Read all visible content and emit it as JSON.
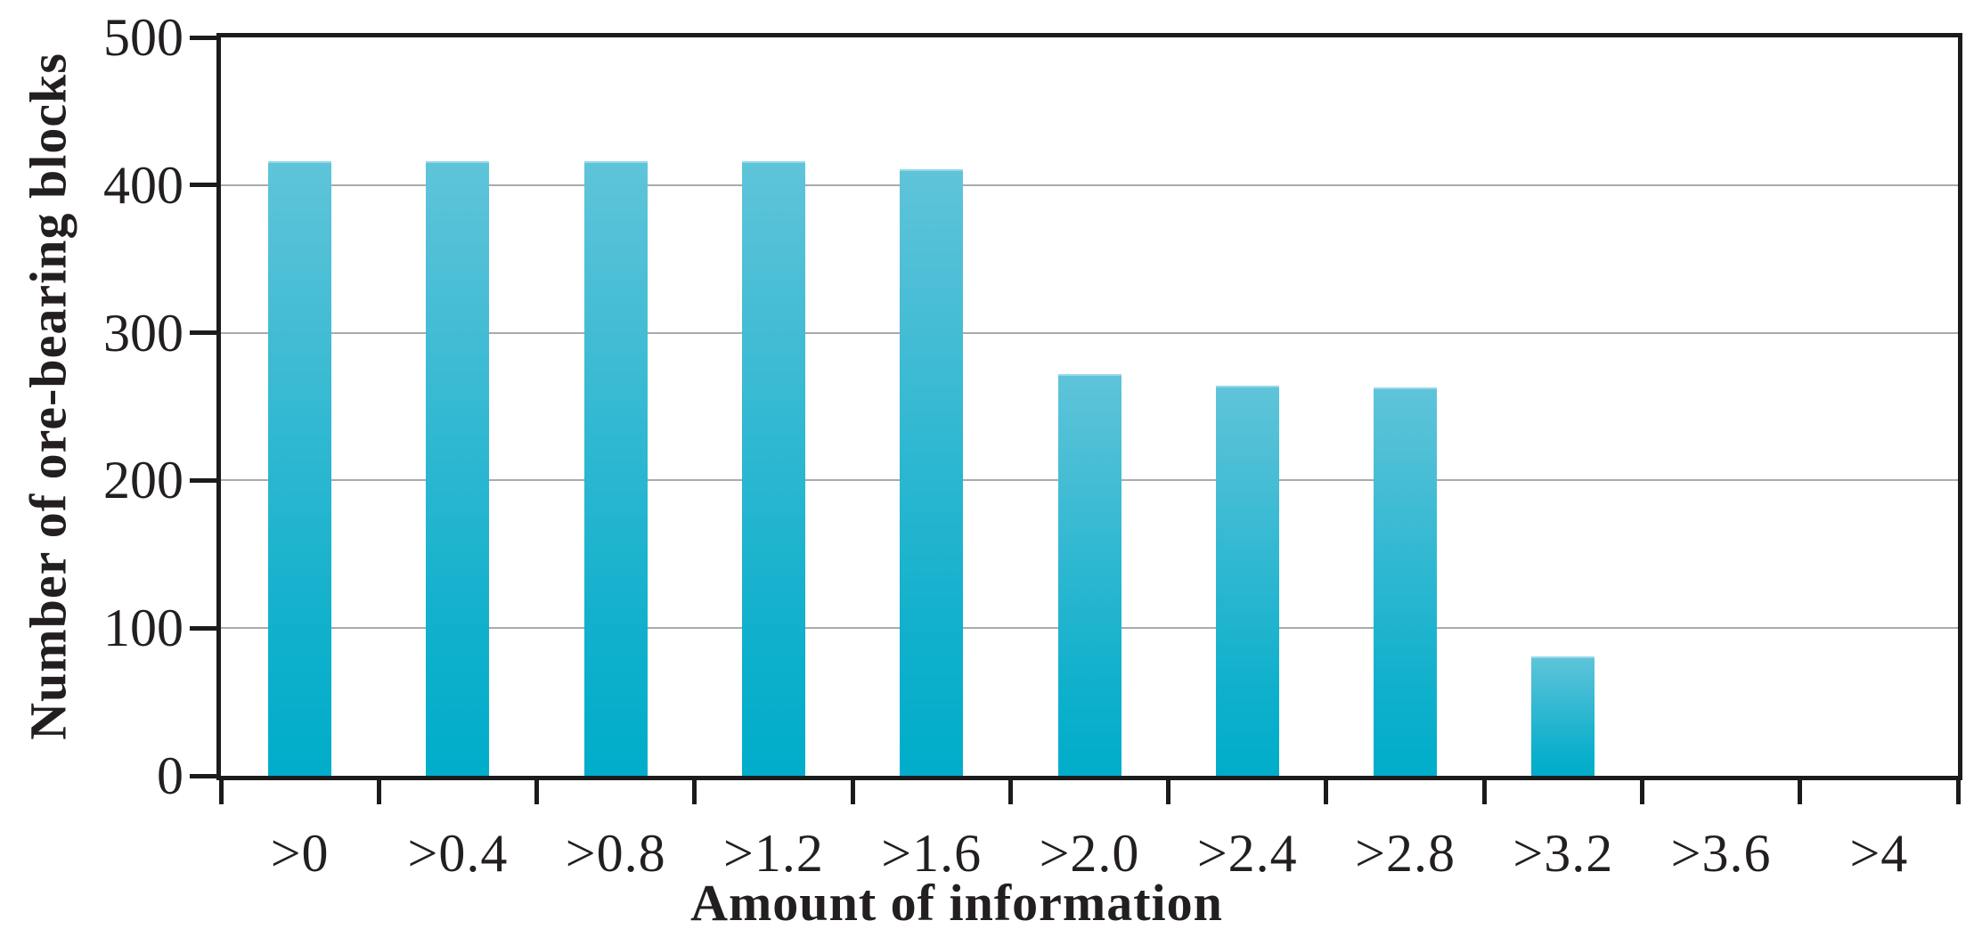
{
  "figure": {
    "background_color": "#ffffff",
    "text_color": "#231f20",
    "axis_color": "#1b1b1b",
    "gridline_color": "#a8aaad",
    "bar_gradient_top": "#5fc4da",
    "bar_gradient_bottom": "#00adca"
  },
  "chart_data": {
    "type": "bar",
    "title": "",
    "xlabel": "Amount of information",
    "ylabel": "Number of ore-bearing blocks",
    "categories": [
      ">0",
      ">0.4",
      ">0.8",
      ">1.2",
      ">1.6",
      ">2.0",
      ">2.4",
      ">2.8",
      ">3.2",
      ">3.6",
      ">4"
    ],
    "values": [
      416,
      416,
      416,
      416,
      411,
      272,
      264,
      263,
      81,
      0,
      0
    ],
    "ylim": [
      0,
      500
    ],
    "yticks": [
      0,
      100,
      200,
      300,
      400,
      500
    ],
    "ytick_labels": [
      "0",
      "100",
      "200",
      "300",
      "400",
      "500"
    ],
    "grid": "horizontal",
    "legend": "none",
    "bar_fill": "vertical cyan gradient"
  }
}
